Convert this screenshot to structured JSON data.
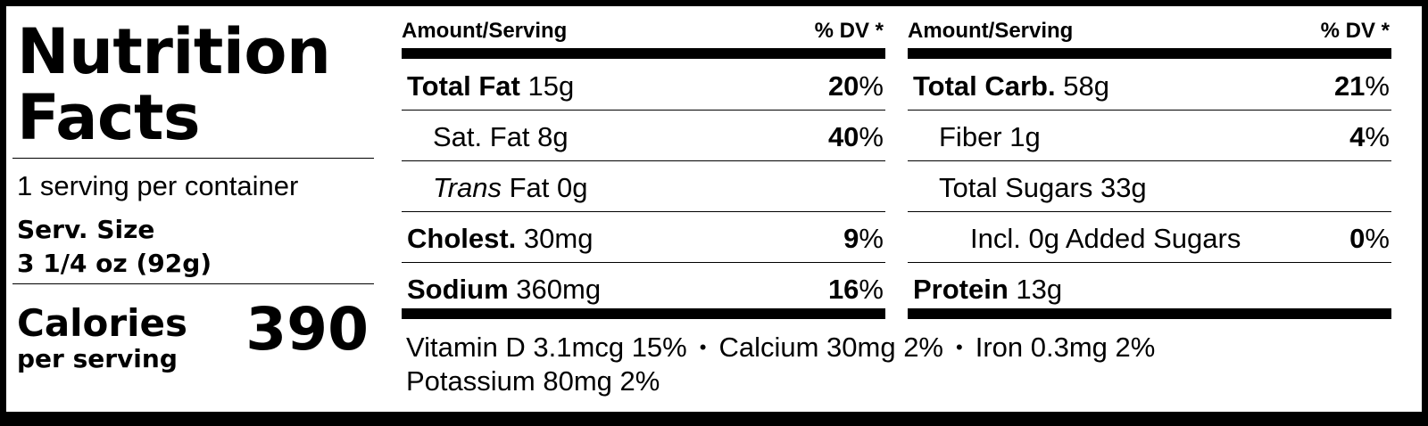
{
  "title_line1": "Nutrition",
  "title_line2": "Facts",
  "servings_per_container": "1 serving per container",
  "serving_size_label": "Serv. Size",
  "serving_size_value": "3 1/4 oz (92g)",
  "calories_label": "Calories",
  "calories_sublabel": "per serving",
  "calories_value": "390",
  "header": {
    "amount": "Amount/Serving",
    "dv": "% DV *"
  },
  "left_rows": [
    {
      "name": "Total Fat",
      "amount": "15g",
      "dv_num": "20",
      "dv_sign": "%"
    },
    {
      "name": "Sat. Fat",
      "amount": "8g",
      "dv_num": "40",
      "dv_sign": "%"
    },
    {
      "name_italic": "Trans",
      "name": "Fat",
      "amount": "0g"
    },
    {
      "name": "Cholest.",
      "amount": "30mg",
      "dv_num": "9",
      "dv_sign": "%"
    },
    {
      "name": "Sodium",
      "amount": "360mg",
      "dv_num": "16",
      "dv_sign": "%"
    }
  ],
  "right_rows": [
    {
      "name": "Total Carb.",
      "amount": "58g",
      "dv_num": "21",
      "dv_sign": "%"
    },
    {
      "name": "Fiber",
      "amount": "1g",
      "dv_num": "4",
      "dv_sign": "%"
    },
    {
      "name": "Total Sugars",
      "amount": "33g"
    },
    {
      "name": "Incl. 0g Added Sugars",
      "dv_num": "0",
      "dv_sign": "%"
    },
    {
      "name": "Protein",
      "amount": "13g"
    }
  ],
  "vitamins": {
    "vitamin_d": "Vitamin D 3.1mcg 15%",
    "calcium": "Calcium 30mg 2%",
    "iron": "Iron 0.3mg 2%",
    "potassium": "Potassium 80mg 2%",
    "separator": "•"
  }
}
